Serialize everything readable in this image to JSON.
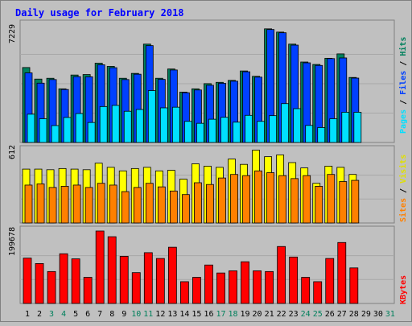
{
  "chart_data": [
    {
      "type": "bar",
      "title": "Daily usage for February 2018",
      "ymax_label": "7229",
      "legend": [
        "Pages",
        "Files",
        "Hits"
      ],
      "colors": {
        "hits": "#00805c",
        "files": "#0040ff",
        "pages": "#00e0ff"
      },
      "ylim": [
        0,
        7229
      ],
      "categories": [
        "1",
        "2",
        "3",
        "4",
        "5",
        "6",
        "7",
        "8",
        "9",
        "10",
        "11",
        "12",
        "13",
        "14",
        "15",
        "16",
        "17",
        "18",
        "19",
        "20",
        "21",
        "22",
        "23",
        "24",
        "25",
        "26",
        "27",
        "28",
        "29",
        "30",
        "31"
      ],
      "weekend_days": [
        3,
        4,
        10,
        11,
        17,
        18,
        24,
        25,
        31
      ],
      "series": [
        {
          "name": "Hits",
          "values": [
            4610,
            3900,
            3950,
            3300,
            4150,
            4180,
            4880,
            4680,
            3950,
            4250,
            6050,
            3950,
            4520,
            3100,
            3300,
            3620,
            3700,
            3820,
            4400,
            4070,
            6990,
            6790,
            6050,
            4950,
            4800,
            5180,
            5450,
            4000,
            0,
            0,
            0
          ]
        },
        {
          "name": "Files",
          "values": [
            4280,
            3650,
            3870,
            3260,
            4050,
            4040,
            4780,
            4600,
            3870,
            4200,
            5960,
            3880,
            4460,
            3060,
            3230,
            3520,
            3640,
            3770,
            4350,
            4020,
            6950,
            6750,
            5990,
            4900,
            4740,
            5160,
            5200,
            3960,
            0,
            0,
            0
          ]
        },
        {
          "name": "Pages",
          "values": [
            1740,
            1460,
            1040,
            1540,
            1780,
            1230,
            2210,
            2280,
            1920,
            2030,
            3190,
            2130,
            2170,
            1300,
            1180,
            1430,
            1550,
            1250,
            1670,
            1300,
            1650,
            2390,
            2080,
            1050,
            920,
            1460,
            1860,
            1860,
            0,
            0,
            0
          ]
        }
      ]
    },
    {
      "type": "bar",
      "ymax_label": "612",
      "legend": [
        "Sites",
        "Visits"
      ],
      "colors": {
        "visits": "#ffff00",
        "sites": "#ff8000"
      },
      "ylim": [
        0,
        612
      ],
      "series": [
        {
          "name": "Visits",
          "values": [
            455,
            455,
            450,
            460,
            455,
            450,
            505,
            470,
            440,
            460,
            470,
            440,
            445,
            370,
            500,
            480,
            470,
            540,
            495,
            615,
            560,
            575,
            510,
            465,
            335,
            480,
            470,
            410,
            0,
            0,
            0
          ]
        },
        {
          "name": "Sites",
          "values": [
            320,
            330,
            300,
            310,
            320,
            300,
            335,
            320,
            265,
            300,
            335,
            305,
            270,
            240,
            340,
            325,
            380,
            410,
            400,
            440,
            425,
            400,
            375,
            400,
            310,
            410,
            350,
            360,
            0,
            0,
            0
          ]
        }
      ]
    },
    {
      "type": "bar",
      "ymax_label": "199678",
      "legend": [
        "KBytes"
      ],
      "colors": {
        "kbytes": "#ff0000"
      },
      "ylim": [
        0,
        199678
      ],
      "series": [
        {
          "name": "KBytes",
          "values": [
            125000,
            110000,
            88000,
            137000,
            123000,
            72000,
            199678,
            184000,
            130000,
            85000,
            140000,
            124000,
            155000,
            60000,
            72000,
            106000,
            84000,
            90000,
            115000,
            90000,
            88000,
            157000,
            128000,
            72000,
            60000,
            124000,
            168000,
            98000,
            0,
            0,
            0
          ]
        }
      ]
    }
  ]
}
